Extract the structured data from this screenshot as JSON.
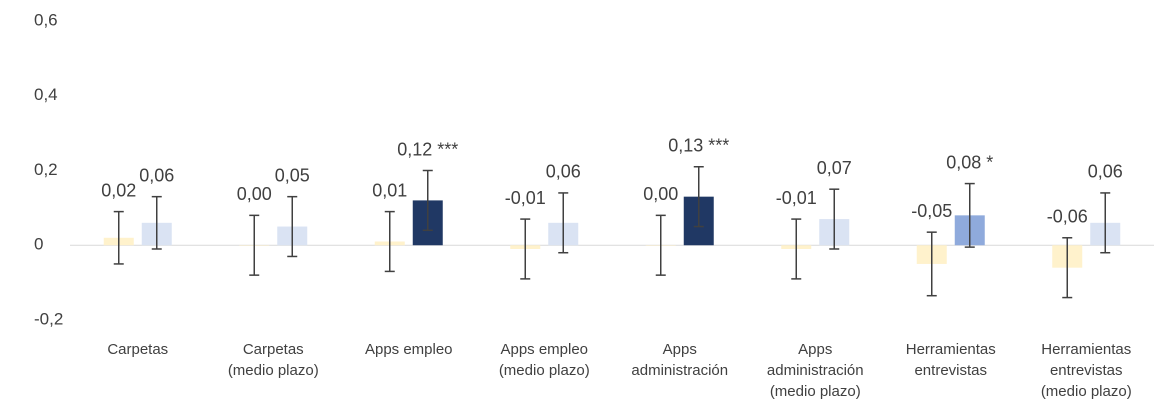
{
  "chart_data": {
    "type": "bar",
    "categories": [
      [
        "Carpetas"
      ],
      [
        "Carpetas",
        "(medio plazo)"
      ],
      [
        "Apps empleo"
      ],
      [
        "Apps empleo",
        "(medio plazo)"
      ],
      [
        "Apps",
        "administración"
      ],
      [
        "Apps",
        "administración",
        "(medio plazo)"
      ],
      [
        "Herramientas",
        "entrevistas"
      ],
      [
        "Herramientas",
        "entrevistas",
        "(medio plazo)"
      ]
    ],
    "series": [
      {
        "colors": [
          "#fff2cc",
          "#fff2cc",
          "#fff2cc",
          "#fff2cc",
          "#fff2cc",
          "#fff2cc",
          "#fff2cc",
          "#fff2cc"
        ],
        "values": [
          0.02,
          0.0,
          0.01,
          -0.01,
          0.0,
          -0.01,
          -0.05,
          -0.06
        ],
        "value_labels": [
          "0,02",
          "0,00",
          "0,01",
          "-0,01",
          "0,00",
          "-0,01",
          "-0,05",
          "-0,06"
        ],
        "errors": [
          0.07,
          0.08,
          0.08,
          0.08,
          0.08,
          0.08,
          0.085,
          0.08
        ]
      },
      {
        "colors": [
          "#dae3f3",
          "#dae3f3",
          "#203864",
          "#dae3f3",
          "#203864",
          "#dae3f3",
          "#8faadc",
          "#dae3f3"
        ],
        "values": [
          0.06,
          0.05,
          0.12,
          0.06,
          0.13,
          0.07,
          0.08,
          0.06
        ],
        "value_labels": [
          "0,06",
          "0,05",
          "0,12 ***",
          "0,06",
          "0,13 ***",
          "0,07",
          "0,08 *",
          "0,06"
        ],
        "errors": [
          0.07,
          0.08,
          0.08,
          0.08,
          0.08,
          0.08,
          0.085,
          0.08
        ]
      }
    ],
    "ylim": [
      -0.2,
      0.6
    ],
    "yticks": [
      {
        "value": 0.6,
        "label": "0,6"
      },
      {
        "value": 0.4,
        "label": "0,4"
      },
      {
        "value": 0.2,
        "label": "0,2"
      },
      0,
      {
        "value": -0.2,
        "label": "-0,2"
      }
    ],
    "grid": false
  }
}
